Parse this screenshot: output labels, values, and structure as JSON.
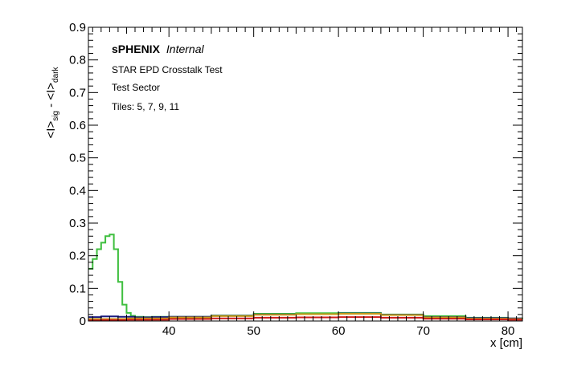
{
  "chart_data": {
    "type": "line",
    "xlabel": "x [cm]",
    "ylabel": {
      "main": "<I>",
      "sub1": "sig",
      "sep": " - ",
      "main2": "<I>",
      "sub2": "dark"
    },
    "xlim": [
      30.5,
      81.7
    ],
    "ylim": [
      0,
      0.9
    ],
    "x_ticks": [
      40,
      50,
      60,
      70,
      80
    ],
    "y_ticks": [
      0,
      0.1,
      0.2,
      0.3,
      0.4,
      0.5,
      0.6,
      0.7,
      0.8,
      0.9
    ],
    "y_tick_labels": [
      "0",
      "0.1",
      "0.2",
      "0.3",
      "0.4",
      "0.5",
      "0.6",
      "0.7",
      "0.8",
      "0.9"
    ],
    "annotations": {
      "brand": "sPHENIX",
      "status": "Internal",
      "line1": "STAR EPD Crosstalk Test",
      "line2": "Test Sector",
      "line3": "Tiles: 5, 7, 9, 11"
    },
    "grid": false,
    "series": [
      {
        "color": "#3fbf3f",
        "style": "step",
        "x": [
          30.5,
          31.0,
          31.5,
          32.0,
          32.5,
          33.0,
          33.5,
          34.0,
          34.5,
          35.0,
          35.5,
          36.0,
          37.0,
          38.0,
          40.0,
          45.0,
          50.0,
          55.0,
          60.0,
          65.0,
          70.0,
          75.0,
          80.0,
          81.7
        ],
        "y": [
          0.16,
          0.19,
          0.22,
          0.24,
          0.26,
          0.265,
          0.22,
          0.12,
          0.05,
          0.025,
          0.016,
          0.013,
          0.012,
          0.013,
          0.013,
          0.017,
          0.022,
          0.024,
          0.025,
          0.02,
          0.015,
          0.01,
          0.008,
          0.007
        ]
      },
      {
        "color": "#1a1a80",
        "style": "step",
        "x": [
          30.5,
          32.0,
          34.0,
          36.0,
          38.0,
          40.0,
          45.0,
          50.0,
          55.0,
          60.0,
          65.0,
          70.0,
          75.0,
          80.0,
          81.7
        ],
        "y": [
          0.012,
          0.014,
          0.013,
          0.011,
          0.012,
          0.013,
          0.016,
          0.02,
          0.021,
          0.023,
          0.019,
          0.012,
          0.009,
          0.008,
          0.008
        ]
      },
      {
        "color": "#c89a1a",
        "style": "step",
        "x": [
          30.5,
          35.0,
          40.0,
          45.0,
          50.0,
          55.0,
          60.0,
          65.0,
          70.0,
          75.0,
          80.0,
          81.7
        ],
        "y": [
          0.006,
          0.008,
          0.011,
          0.015,
          0.019,
          0.021,
          0.022,
          0.018,
          0.011,
          0.007,
          0.006,
          0.006
        ]
      },
      {
        "color": "#cc1a1a",
        "style": "step",
        "x": [
          30.5,
          32.0,
          35.0,
          40.0,
          45.0,
          50.0,
          55.0,
          60.0,
          65.0,
          70.0,
          75.0,
          80.0,
          81.7
        ],
        "y": [
          0.002,
          0.003,
          0.004,
          0.006,
          0.008,
          0.01,
          0.011,
          0.012,
          0.01,
          0.007,
          0.005,
          0.004,
          0.004
        ]
      }
    ]
  }
}
